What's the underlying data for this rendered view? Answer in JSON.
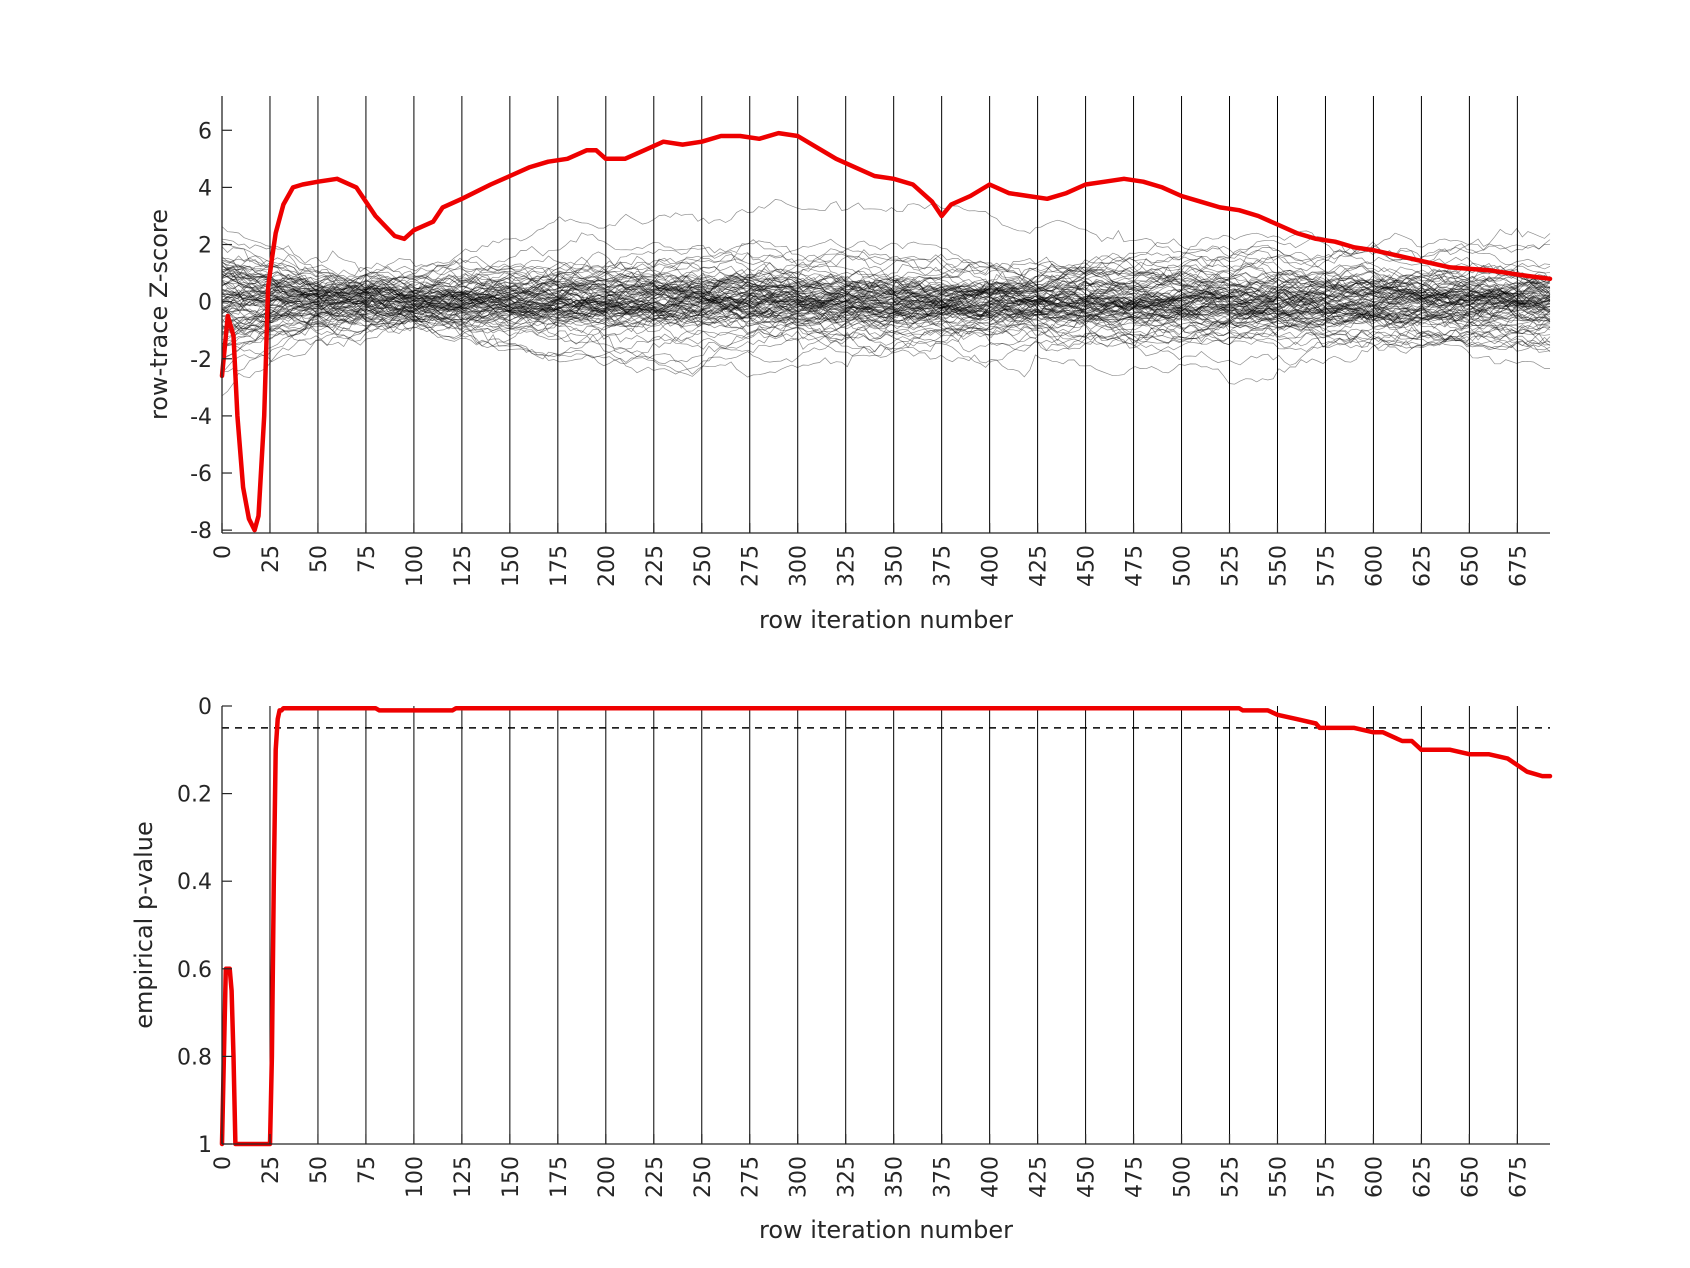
{
  "chart_data": [
    {
      "type": "line",
      "xlabel": "row iteration number",
      "ylabel": "row-trace Z-score",
      "xlim": [
        0,
        692
      ],
      "ylim": [
        -8.1,
        7.2
      ],
      "x_ticks": [
        0,
        25,
        50,
        75,
        100,
        125,
        150,
        175,
        200,
        225,
        250,
        275,
        300,
        325,
        350,
        375,
        400,
        425,
        450,
        475,
        500,
        525,
        550,
        575,
        600,
        625,
        650,
        675
      ],
      "y_ticks": [
        -8,
        -6,
        -4,
        -2,
        0,
        2,
        4,
        6
      ],
      "vertical_gridlines_at_x_ticks": true,
      "series": [
        {
          "color": "#ee0000",
          "line_width": "thick",
          "x": [
            0,
            3,
            6,
            8,
            11,
            14,
            17,
            19,
            22,
            24,
            26,
            28,
            32,
            37,
            42,
            50,
            60,
            70,
            80,
            90,
            95,
            100,
            110,
            115,
            125,
            140,
            150,
            160,
            170,
            180,
            190,
            195,
            200,
            210,
            220,
            230,
            240,
            250,
            260,
            270,
            280,
            290,
            300,
            310,
            320,
            330,
            340,
            350,
            360,
            370,
            375,
            380,
            390,
            400,
            410,
            420,
            430,
            440,
            450,
            460,
            470,
            480,
            490,
            500,
            510,
            520,
            530,
            540,
            550,
            560,
            570,
            580,
            590,
            600,
            620,
            640,
            660,
            680,
            692
          ],
          "y": [
            -2.6,
            -0.5,
            -1.2,
            -4.0,
            -6.5,
            -7.6,
            -8.0,
            -7.5,
            -4.0,
            0.5,
            1.5,
            2.4,
            3.4,
            4.0,
            4.1,
            4.2,
            4.3,
            4.0,
            3.0,
            2.3,
            2.2,
            2.5,
            2.8,
            3.3,
            3.6,
            4.1,
            4.4,
            4.7,
            4.9,
            5.0,
            5.3,
            5.3,
            5.0,
            5.0,
            5.3,
            5.6,
            5.5,
            5.6,
            5.8,
            5.8,
            5.7,
            5.9,
            5.8,
            5.4,
            5.0,
            4.7,
            4.4,
            4.3,
            4.1,
            3.5,
            3.0,
            3.4,
            3.7,
            4.1,
            3.8,
            3.7,
            3.6,
            3.8,
            4.1,
            4.2,
            4.3,
            4.2,
            4.0,
            3.7,
            3.5,
            3.3,
            3.2,
            3.0,
            2.7,
            2.4,
            2.2,
            2.1,
            1.9,
            1.8,
            1.5,
            1.2,
            1.1,
            0.9,
            0.8
          ]
        }
      ],
      "null_traces": {
        "count": 100,
        "color": "#000000",
        "spread_sd_approx": 1.0,
        "range_approx": [
          -3.4,
          4.8
        ]
      }
    },
    {
      "type": "line",
      "xlabel": "row iteration number",
      "ylabel": "empirical p-value",
      "xlim": [
        0,
        692
      ],
      "ylim": [
        0,
        1
      ],
      "y_reversed": true,
      "x_ticks": [
        0,
        25,
        50,
        75,
        100,
        125,
        150,
        175,
        200,
        225,
        250,
        275,
        300,
        325,
        350,
        375,
        400,
        425,
        450,
        475,
        500,
        525,
        550,
        575,
        600,
        625,
        650,
        675
      ],
      "y_ticks": [
        0,
        0.2,
        0.4,
        0.6,
        0.8,
        1
      ],
      "y_tick_labels": [
        "0",
        "0.2",
        "0.4",
        "0.6",
        "0.8",
        "1"
      ],
      "vertical_gridlines_at_x_ticks": true,
      "reference_line": {
        "y": 0.05,
        "style": "dashed",
        "color": "#000000"
      },
      "series": [
        {
          "color": "#ee0000",
          "line_width": "thick",
          "x": [
            0,
            1,
            2,
            3,
            4,
            5,
            6,
            7,
            8,
            10,
            24,
            25,
            26,
            27,
            28,
            29,
            30,
            31,
            32,
            34,
            80,
            82,
            100,
            120,
            122,
            130,
            300,
            530,
            532,
            545,
            550,
            560,
            570,
            572,
            590,
            600,
            605,
            610,
            615,
            620,
            625,
            640,
            650,
            660,
            670,
            680,
            688,
            692
          ],
          "y": [
            1,
            0.8,
            0.6,
            0.6,
            0.6,
            0.65,
            0.8,
            1,
            1,
            1,
            1,
            1,
            0.8,
            0.4,
            0.1,
            0.03,
            0.01,
            0.01,
            0.005,
            0.005,
            0.005,
            0.01,
            0.01,
            0.01,
            0.005,
            0.005,
            0.005,
            0.005,
            0.01,
            0.01,
            0.02,
            0.03,
            0.04,
            0.05,
            0.05,
            0.06,
            0.06,
            0.07,
            0.08,
            0.08,
            0.1,
            0.1,
            0.11,
            0.11,
            0.12,
            0.15,
            0.16,
            0.16
          ]
        }
      ]
    }
  ]
}
